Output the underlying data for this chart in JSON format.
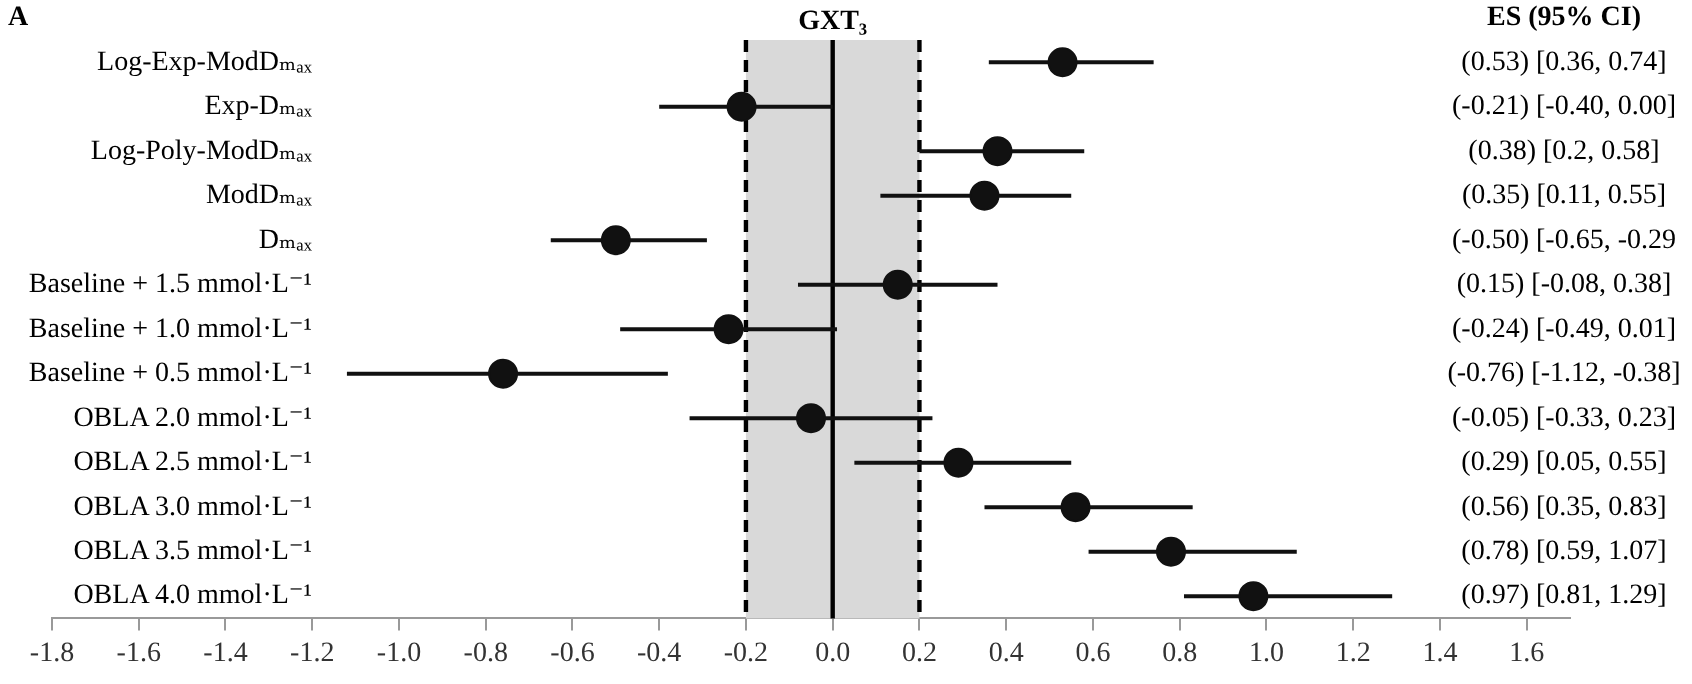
{
  "chart_data": {
    "type": "scatter",
    "orientation": "horizontal",
    "marker": "circle",
    "grid": false,
    "categories": [
      "Log-Exp-ModDₘₐₓ",
      "Exp-Dₘₐₓ",
      "Log-Poly-ModDₘₐₓ",
      "ModDₘₐₓ",
      "Dₘₐₓ",
      "Baseline + 1.5 mmol·L⁻¹",
      "Baseline + 1.0 mmol·L⁻¹",
      "Baseline + 0.5 mmol·L⁻¹",
      "OBLA 2.0 mmol·L⁻¹",
      "OBLA 2.5 mmol·L⁻¹",
      "OBLA 3.0 mmol·L⁻¹",
      "OBLA 3.5 mmol·L⁻¹",
      "OBLA 4.0 mmol·L⁻¹"
    ],
    "values": [
      0.53,
      -0.21,
      0.38,
      0.35,
      -0.5,
      0.15,
      -0.24,
      -0.76,
      -0.05,
      0.29,
      0.56,
      0.78,
      0.97
    ],
    "errors": [
      [
        0.36,
        0.74
      ],
      [
        -0.4,
        0.0
      ],
      [
        0.2,
        0.58
      ],
      [
        0.11,
        0.55
      ],
      [
        -0.65,
        -0.29
      ],
      [
        -0.08,
        0.38
      ],
      [
        -0.49,
        0.01
      ],
      [
        -1.12,
        -0.38
      ],
      [
        -0.33,
        0.23
      ],
      [
        0.05,
        0.55
      ],
      [
        0.35,
        0.83
      ],
      [
        0.59,
        1.07
      ],
      [
        0.81,
        1.29
      ]
    ],
    "color": "#111111",
    "xlim": [
      -1.8,
      1.7
    ],
    "xticks": [
      -1.8,
      -1.6,
      -1.4,
      -1.2,
      {
        "value": -1.0,
        "label": "-1.0"
      },
      -0.8,
      -0.6,
      -0.4,
      -0.2,
      {
        "value": 0,
        "label": "0.0"
      },
      0.2,
      0.4,
      0.6,
      0.8,
      {
        "value": 1.0,
        "label": "1.0"
      },
      1.2,
      1.4,
      1.6
    ],
    "bands": [
      {
        "axis": "x",
        "from": -0.2,
        "to": 0.2,
        "label": "GXT₃",
        "color": "#d9d9d9"
      }
    ],
    "ref_lines": [
      {
        "axis": "x",
        "value": 0,
        "line_style": "solid"
      },
      {
        "axis": "x",
        "value": -0.2,
        "line_style": "dashed"
      },
      {
        "axis": "x",
        "value": 0.2,
        "line_style": "dashed"
      }
    ],
    "annotations": [
      "A",
      "ES (95% CI)",
      "(0.53) [0.36, 0.74]",
      "(-0.21) [-0.40, 0.00]",
      "(0.38) [0.2, 0.58]",
      "(0.35) [0.11, 0.55]",
      "(-0.50) [-0.65, -0.29",
      "(0.15) [-0.08, 0.38]",
      "(-0.24) [-0.49, 0.01]",
      "(-0.76) [-1.12, -0.38]",
      "(-0.05) [-0.33, 0.23]",
      "(0.29) [0.05, 0.55]",
      "(0.56) [0.35, 0.83]",
      "(0.78) [0.59, 1.07]",
      "(0.97) [0.81, 1.29]"
    ]
  }
}
